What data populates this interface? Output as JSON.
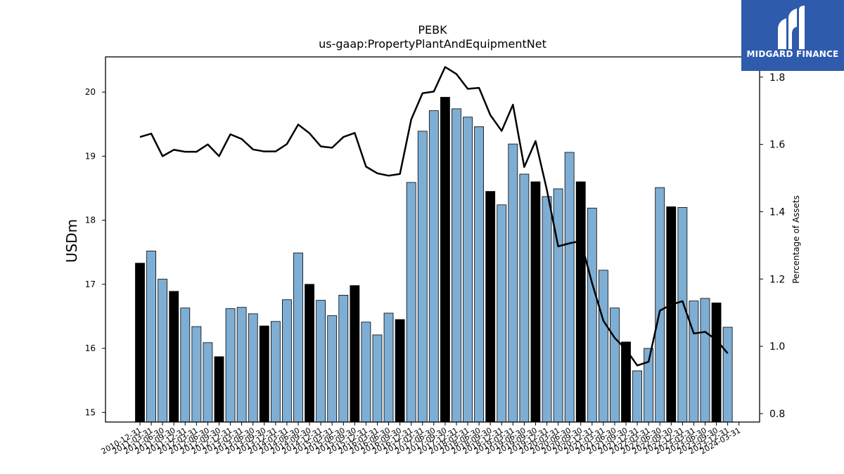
{
  "chart_data": {
    "type": "bar",
    "title": "PEBK",
    "subtitle": "us-gaap:PropertyPlantAndEquipmentNet",
    "ylabel": "USDm",
    "y2label": "Percentage of Assets",
    "ylim": [
      14.85,
      20.55
    ],
    "y2lim": [
      0.775,
      1.86
    ],
    "yticks": [
      15,
      16,
      17,
      18,
      19,
      20
    ],
    "y2ticks": [
      0.8,
      1.0,
      1.2,
      1.4,
      1.6,
      1.8
    ],
    "categories": [
      "2010-12-31",
      "2011-03-31",
      "2011-06-30",
      "2011-09-30",
      "2011-12-31",
      "2012-03-31",
      "2012-06-30",
      "2012-09-30",
      "2012-12-31",
      "2013-03-31",
      "2013-06-30",
      "2013-09-30",
      "2013-12-31",
      "2014-03-31",
      "2014-06-30",
      "2014-09-30",
      "2014-12-31",
      "2015-03-31",
      "2015-06-30",
      "2015-09-30",
      "2015-12-31",
      "2016-03-31",
      "2016-06-30",
      "2016-09-30",
      "2016-12-31",
      "2017-03-31",
      "2017-06-30",
      "2017-09-30",
      "2017-12-31",
      "2018-03-31",
      "2018-06-30",
      "2018-09-30",
      "2018-12-31",
      "2019-03-31",
      "2019-06-30",
      "2019-09-30",
      "2019-12-31",
      "2020-03-31",
      "2020-06-30",
      "2020-09-30",
      "2020-12-31",
      "2021-03-31",
      "2021-06-30",
      "2021-09-30",
      "2021-12-31",
      "2022-03-31",
      "2022-06-30",
      "2022-09-30",
      "2022-12-31",
      "2023-03-31",
      "2023-06-30",
      "2023-09-30",
      "2023-12-31",
      "2024-03-31"
    ],
    "series": [
      {
        "values": [
          17.33,
          17.52,
          17.08,
          16.89,
          16.63,
          16.34,
          16.09,
          15.87,
          16.62,
          16.64,
          16.54,
          16.35,
          16.42,
          16.76,
          17.49,
          17.0,
          16.75,
          16.51,
          16.83,
          16.98,
          16.41,
          16.21,
          16.55,
          16.45,
          18.59,
          19.39,
          19.71,
          19.92,
          19.74,
          19.61,
          19.46,
          18.45,
          18.24,
          19.19,
          18.72,
          18.6,
          18.37,
          18.49,
          19.06,
          18.6,
          18.19,
          17.22,
          16.63,
          16.1,
          15.65,
          16.0,
          18.51,
          18.21,
          18.2,
          16.74,
          16.78,
          16.71,
          16.33,
          null
        ],
        "highlighted": [
          true,
          false,
          false,
          true,
          false,
          false,
          false,
          true,
          false,
          false,
          false,
          true,
          false,
          false,
          false,
          true,
          false,
          false,
          false,
          true,
          false,
          false,
          false,
          true,
          false,
          false,
          false,
          true,
          false,
          false,
          false,
          true,
          false,
          false,
          false,
          true,
          false,
          false,
          false,
          true,
          false,
          false,
          false,
          true,
          false,
          false,
          false,
          true,
          false,
          false,
          false,
          true,
          false,
          false
        ]
      },
      {
        "axis": "right",
        "type": "line",
        "values": [
          1.622,
          1.632,
          1.565,
          1.584,
          1.578,
          1.578,
          1.6,
          1.565,
          1.63,
          1.616,
          1.585,
          1.579,
          1.579,
          1.601,
          1.659,
          1.633,
          1.594,
          1.59,
          1.622,
          1.634,
          1.534,
          1.514,
          1.507,
          1.512,
          1.674,
          1.752,
          1.757,
          1.83,
          1.809,
          1.765,
          1.768,
          1.687,
          1.64,
          1.718,
          1.533,
          1.61,
          1.465,
          1.297,
          1.306,
          1.313,
          1.188,
          1.076,
          1.025,
          0.991,
          0.943,
          0.954,
          1.106,
          1.124,
          1.134,
          1.038,
          1.043,
          1.019,
          0.979,
          null
        ]
      }
    ],
    "colors": {
      "bar": "#7eaed4",
      "bar_highlight": "#000000",
      "line": "#000000"
    }
  },
  "logo": {
    "text": "MIDGARD FINANCE",
    "icon": "midgard-logo-icon",
    "bg": "#2f5bad"
  }
}
